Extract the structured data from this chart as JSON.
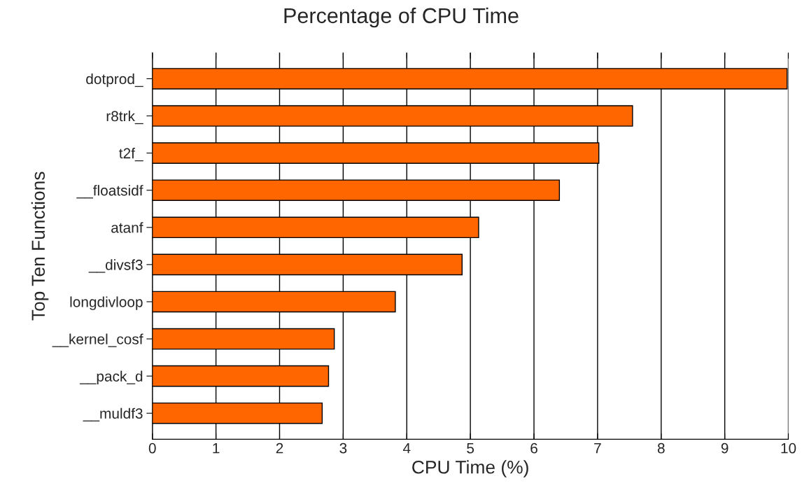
{
  "chart_data": {
    "type": "bar",
    "orientation": "horizontal",
    "title": "Percentage of CPU Time",
    "xlabel": "CPU Time (%)",
    "ylabel": "Top Ten Functions",
    "categories": [
      "dotprod_",
      "r8trk_",
      "t2f_",
      "__floatsidf",
      "atanf",
      "__divsf3",
      "longdivloop",
      "__kernel_cosf",
      "__pack_d",
      "__muldf3"
    ],
    "values": [
      9.98,
      7.55,
      7.02,
      6.4,
      5.13,
      4.87,
      3.82,
      2.86,
      2.77,
      2.67
    ],
    "color": "#ff6600",
    "xlim": [
      0,
      10
    ],
    "xticks": [
      0,
      1,
      2,
      3,
      4,
      5,
      6,
      7,
      8,
      9,
      10
    ],
    "grid": "x"
  }
}
